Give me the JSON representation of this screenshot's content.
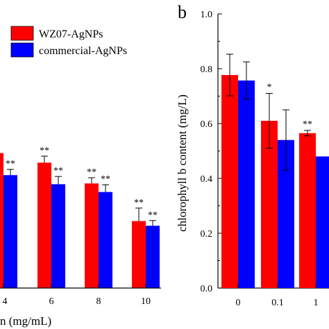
{
  "chart_data": [
    {
      "panel": "a",
      "panel_label": "",
      "type": "bar",
      "categories": [
        "4",
        "6",
        "8",
        "10"
      ],
      "xlabel_visible": "n (mg/mL)",
      "ylabel": "",
      "ylim": [
        0,
        1.0
      ],
      "legend": {
        "placement": "top-right"
      },
      "series": [
        {
          "name": "WZ07-AgNPs",
          "color": "#ff0000",
          "values": [
            0.52,
            0.483,
            0.403,
            0.258
          ],
          "errors": [
            0.04,
            0.025,
            0.022,
            0.05
          ],
          "significance": [
            "*",
            "**",
            "**",
            "**"
          ]
        },
        {
          "name": "commercial-AgNPs",
          "color": "#0000ff",
          "values": [
            0.435,
            0.4,
            0.37,
            0.24
          ],
          "errors": [
            0.022,
            0.03,
            0.028,
            0.02
          ],
          "significance": [
            "**",
            "**",
            "**",
            "**"
          ]
        }
      ]
    },
    {
      "panel": "b",
      "panel_label": "b",
      "type": "bar",
      "categories": [
        "0",
        "0.1",
        "1"
      ],
      "xlabel": "",
      "ylabel": "chlorophyll b content (mg/L)",
      "ylim": [
        0,
        1.0
      ],
      "yticks": [
        "0.0",
        "0.2",
        "0.4",
        "0.6",
        "0.8",
        "1.0"
      ],
      "series": [
        {
          "name": "WZ07-AgNPs",
          "color": "#ff0000",
          "values": [
            0.777,
            0.61,
            0.565
          ],
          "errors": [
            0.076,
            0.1,
            0.01
          ],
          "significance": [
            "",
            "*",
            "**"
          ]
        },
        {
          "name": "commercial-AgNPs",
          "color": "#0000ff",
          "values": [
            0.757,
            0.54,
            0.48
          ],
          "errors": [
            0.068,
            0.11,
            0.0
          ],
          "significance": [
            "",
            "",
            ""
          ]
        }
      ]
    }
  ]
}
